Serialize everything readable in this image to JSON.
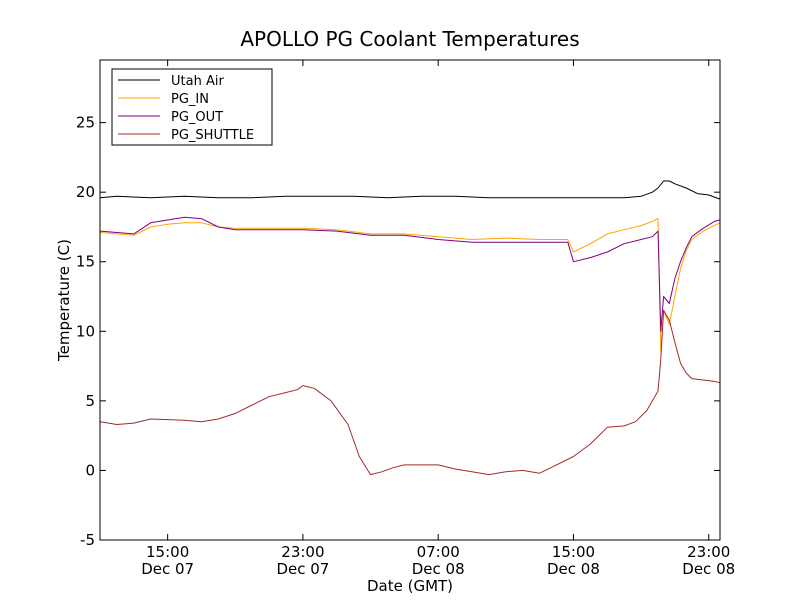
{
  "chart_data": {
    "type": "line",
    "title": "APOLLO PG Coolant Temperatures",
    "xlabel": "Date (GMT)",
    "ylabel": "Temperature (C)",
    "ylim": [
      -5,
      29.5
    ],
    "xlim": [
      "2012-12-07 11:00",
      "2012-12-08 23:40"
    ],
    "y_ticks": [
      "-5",
      "0",
      "5",
      "10",
      "15",
      "20",
      "25"
    ],
    "x_ticks": [
      {
        "time": "15:00",
        "date": "Dec 07"
      },
      {
        "time": "23:00",
        "date": "Dec 07"
      },
      {
        "time": "07:00",
        "date": "Dec 08"
      },
      {
        "time": "15:00",
        "date": "Dec 08"
      },
      {
        "time": "23:00",
        "date": "Dec 08"
      }
    ],
    "grid": false,
    "legend_position": "top-left",
    "series": [
      {
        "name": "Utah Air",
        "color": "#000000",
        "points": [
          [
            "2012-12-07 11:00",
            19.6
          ],
          [
            "2012-12-07 12:00",
            19.7
          ],
          [
            "2012-12-07 14:00",
            19.6
          ],
          [
            "2012-12-07 16:00",
            19.7
          ],
          [
            "2012-12-07 18:00",
            19.6
          ],
          [
            "2012-12-07 20:00",
            19.6
          ],
          [
            "2012-12-07 22:00",
            19.7
          ],
          [
            "2012-12-08 00:00",
            19.7
          ],
          [
            "2012-12-08 02:00",
            19.7
          ],
          [
            "2012-12-08 04:00",
            19.6
          ],
          [
            "2012-12-08 06:00",
            19.7
          ],
          [
            "2012-12-08 08:00",
            19.7
          ],
          [
            "2012-12-08 10:00",
            19.6
          ],
          [
            "2012-12-08 12:00",
            19.6
          ],
          [
            "2012-12-08 14:00",
            19.6
          ],
          [
            "2012-12-08 16:00",
            19.6
          ],
          [
            "2012-12-08 18:00",
            19.6
          ],
          [
            "2012-12-08 19:00",
            19.7
          ],
          [
            "2012-12-08 19:40",
            20.0
          ],
          [
            "2012-12-08 20:00",
            20.3
          ],
          [
            "2012-12-08 20:20",
            20.8
          ],
          [
            "2012-12-08 20:40",
            20.8
          ],
          [
            "2012-12-08 21:00",
            20.6
          ],
          [
            "2012-12-08 21:40",
            20.3
          ],
          [
            "2012-12-08 22:20",
            19.9
          ],
          [
            "2012-12-08 23:00",
            19.8
          ],
          [
            "2012-12-08 23:40",
            19.5
          ]
        ]
      },
      {
        "name": "PG_IN",
        "color": "#ffa500",
        "points": [
          [
            "2012-12-07 11:00",
            17.1
          ],
          [
            "2012-12-07 12:00",
            17.0
          ],
          [
            "2012-12-07 13:00",
            16.9
          ],
          [
            "2012-12-07 14:00",
            17.5
          ],
          [
            "2012-12-07 15:00",
            17.7
          ],
          [
            "2012-12-07 16:00",
            17.8
          ],
          [
            "2012-12-07 17:00",
            17.8
          ],
          [
            "2012-12-07 18:00",
            17.5
          ],
          [
            "2012-12-07 19:00",
            17.4
          ],
          [
            "2012-12-07 21:00",
            17.4
          ],
          [
            "2012-12-07 23:00",
            17.4
          ],
          [
            "2012-12-08 01:00",
            17.3
          ],
          [
            "2012-12-08 03:00",
            17.0
          ],
          [
            "2012-12-08 05:00",
            17.0
          ],
          [
            "2012-12-08 07:00",
            16.8
          ],
          [
            "2012-12-08 09:00",
            16.6
          ],
          [
            "2012-12-08 11:00",
            16.7
          ],
          [
            "2012-12-08 13:00",
            16.6
          ],
          [
            "2012-12-08 14:40",
            16.6
          ],
          [
            "2012-12-08 15:00",
            15.7
          ],
          [
            "2012-12-08 16:00",
            16.3
          ],
          [
            "2012-12-08 17:00",
            17.0
          ],
          [
            "2012-12-08 18:00",
            17.3
          ],
          [
            "2012-12-08 19:00",
            17.6
          ],
          [
            "2012-12-08 19:40",
            17.9
          ],
          [
            "2012-12-08 20:00",
            18.1
          ],
          [
            "2012-12-08 20:10",
            8.5
          ],
          [
            "2012-12-08 20:20",
            11.5
          ],
          [
            "2012-12-08 20:40",
            10.5
          ],
          [
            "2012-12-08 21:00",
            12.5
          ],
          [
            "2012-12-08 21:20",
            14.5
          ],
          [
            "2012-12-08 21:40",
            15.8
          ],
          [
            "2012-12-08 22:00",
            16.6
          ],
          [
            "2012-12-08 22:40",
            17.2
          ],
          [
            "2012-12-08 23:20",
            17.6
          ],
          [
            "2012-12-08 23:40",
            17.8
          ]
        ]
      },
      {
        "name": "PG_OUT",
        "color": "#800080",
        "points": [
          [
            "2012-12-07 11:00",
            17.2
          ],
          [
            "2012-12-07 12:00",
            17.1
          ],
          [
            "2012-12-07 13:00",
            17.0
          ],
          [
            "2012-12-07 14:00",
            17.8
          ],
          [
            "2012-12-07 15:00",
            18.0
          ],
          [
            "2012-12-07 16:00",
            18.2
          ],
          [
            "2012-12-07 17:00",
            18.1
          ],
          [
            "2012-12-07 18:00",
            17.5
          ],
          [
            "2012-12-07 19:00",
            17.3
          ],
          [
            "2012-12-07 21:00",
            17.3
          ],
          [
            "2012-12-07 23:00",
            17.3
          ],
          [
            "2012-12-08 01:00",
            17.2
          ],
          [
            "2012-12-08 03:00",
            16.9
          ],
          [
            "2012-12-08 05:00",
            16.9
          ],
          [
            "2012-12-08 07:00",
            16.6
          ],
          [
            "2012-12-08 09:00",
            16.4
          ],
          [
            "2012-12-08 11:00",
            16.4
          ],
          [
            "2012-12-08 13:00",
            16.4
          ],
          [
            "2012-12-08 14:40",
            16.4
          ],
          [
            "2012-12-08 15:00",
            15.0
          ],
          [
            "2012-12-08 16:00",
            15.3
          ],
          [
            "2012-12-08 17:00",
            15.7
          ],
          [
            "2012-12-08 18:00",
            16.3
          ],
          [
            "2012-12-08 19:00",
            16.6
          ],
          [
            "2012-12-08 19:40",
            16.8
          ],
          [
            "2012-12-08 20:00",
            17.2
          ],
          [
            "2012-12-08 20:10",
            10.0
          ],
          [
            "2012-12-08 20:20",
            12.5
          ],
          [
            "2012-12-08 20:40",
            12.0
          ],
          [
            "2012-12-08 21:00",
            13.8
          ],
          [
            "2012-12-08 21:20",
            15.0
          ],
          [
            "2012-12-08 21:40",
            16.0
          ],
          [
            "2012-12-08 22:00",
            16.8
          ],
          [
            "2012-12-08 22:40",
            17.4
          ],
          [
            "2012-12-08 23:20",
            17.9
          ],
          [
            "2012-12-08 23:40",
            18.0
          ]
        ]
      },
      {
        "name": "PG_SHUTTLE",
        "color": "#a52a2a",
        "points": [
          [
            "2012-12-07 11:00",
            3.5
          ],
          [
            "2012-12-07 12:00",
            3.3
          ],
          [
            "2012-12-07 13:00",
            3.4
          ],
          [
            "2012-12-07 14:00",
            3.7
          ],
          [
            "2012-12-07 16:00",
            3.6
          ],
          [
            "2012-12-07 17:00",
            3.5
          ],
          [
            "2012-12-07 18:00",
            3.7
          ],
          [
            "2012-12-07 19:00",
            4.1
          ],
          [
            "2012-12-07 20:00",
            4.7
          ],
          [
            "2012-12-07 21:00",
            5.3
          ],
          [
            "2012-12-07 22:00",
            5.6
          ],
          [
            "2012-12-07 22:40",
            5.8
          ],
          [
            "2012-12-07 23:00",
            6.1
          ],
          [
            "2012-12-07 23:40",
            5.9
          ],
          [
            "2012-12-08 00:40",
            5.0
          ],
          [
            "2012-12-08 01:40",
            3.3
          ],
          [
            "2012-12-08 02:20",
            1.0
          ],
          [
            "2012-12-08 03:00",
            -0.3
          ],
          [
            "2012-12-08 03:40",
            -0.1
          ],
          [
            "2012-12-08 04:20",
            0.2
          ],
          [
            "2012-12-08 05:00",
            0.4
          ],
          [
            "2012-12-08 06:00",
            0.4
          ],
          [
            "2012-12-08 07:00",
            0.4
          ],
          [
            "2012-12-08 08:00",
            0.1
          ],
          [
            "2012-12-08 09:00",
            -0.1
          ],
          [
            "2012-12-08 10:00",
            -0.3
          ],
          [
            "2012-12-08 11:00",
            -0.1
          ],
          [
            "2012-12-08 12:00",
            0.0
          ],
          [
            "2012-12-08 13:00",
            -0.2
          ],
          [
            "2012-12-08 14:00",
            0.4
          ],
          [
            "2012-12-08 15:00",
            1.0
          ],
          [
            "2012-12-08 16:00",
            1.9
          ],
          [
            "2012-12-08 17:00",
            3.1
          ],
          [
            "2012-12-08 18:00",
            3.2
          ],
          [
            "2012-12-08 18:40",
            3.5
          ],
          [
            "2012-12-08 19:20",
            4.3
          ],
          [
            "2012-12-08 20:00",
            5.7
          ],
          [
            "2012-12-08 20:10",
            8.0
          ],
          [
            "2012-12-08 20:20",
            11.5
          ],
          [
            "2012-12-08 20:40",
            10.8
          ],
          [
            "2012-12-08 21:00",
            9.2
          ],
          [
            "2012-12-08 21:20",
            7.7
          ],
          [
            "2012-12-08 21:40",
            7.0
          ],
          [
            "2012-12-08 22:00",
            6.6
          ],
          [
            "2012-12-08 22:40",
            6.5
          ],
          [
            "2012-12-08 23:20",
            6.4
          ],
          [
            "2012-12-08 23:40",
            6.3
          ]
        ]
      }
    ]
  }
}
